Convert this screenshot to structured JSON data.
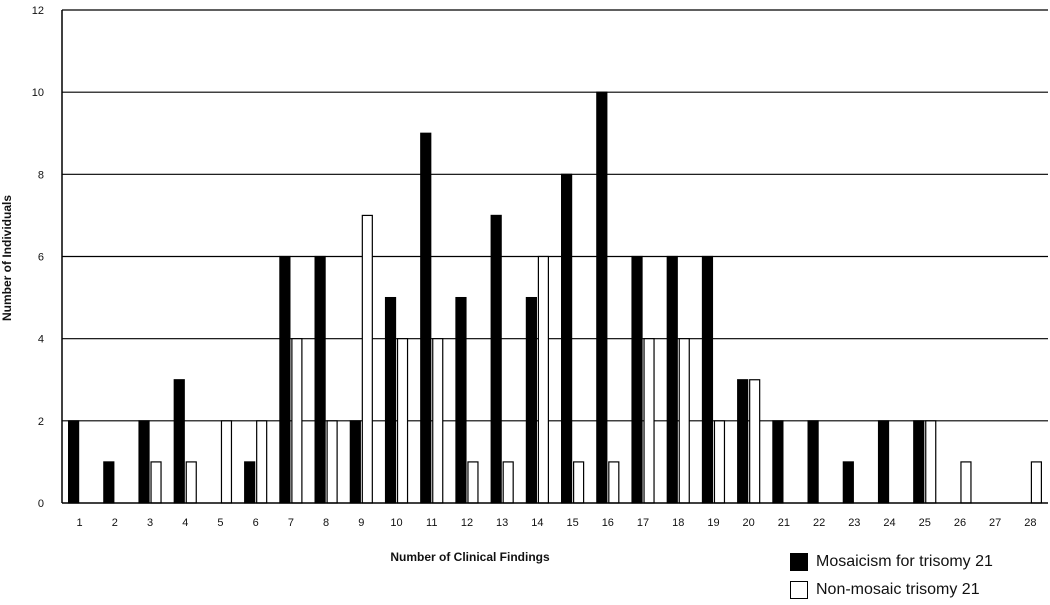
{
  "chart_data": {
    "type": "bar",
    "title": "",
    "xlabel": "Number of Clinical Findings",
    "ylabel": "Number of Individuals",
    "ylim": [
      0,
      12
    ],
    "yticks": [
      0,
      2,
      4,
      6,
      8,
      10,
      12
    ],
    "grid": "horizontal",
    "legend_position": "bottom-right",
    "categories": [
      "1",
      "2",
      "3",
      "4",
      "5",
      "6",
      "7",
      "8",
      "9",
      "10",
      "11",
      "12",
      "13",
      "14",
      "15",
      "16",
      "17",
      "18",
      "19",
      "20",
      "21",
      "22",
      "23",
      "24",
      "25",
      "26",
      "27",
      "28"
    ],
    "series": [
      {
        "name": "Mosaicism for trisomy 21",
        "color": "#000000",
        "values": [
          2,
          1,
          2,
          3,
          0,
          1,
          6,
          6,
          2,
          5,
          9,
          5,
          7,
          5,
          8,
          10,
          6,
          6,
          6,
          3,
          2,
          2,
          1,
          2,
          2,
          0,
          0,
          0
        ]
      },
      {
        "name": "Non-mosaic trisomy 21",
        "color": "#ffffff",
        "values": [
          0,
          0,
          1,
          1,
          2,
          2,
          4,
          2,
          7,
          4,
          4,
          1,
          1,
          6,
          1,
          1,
          4,
          4,
          2,
          3,
          0,
          0,
          0,
          0,
          2,
          1,
          0,
          1
        ]
      }
    ]
  }
}
